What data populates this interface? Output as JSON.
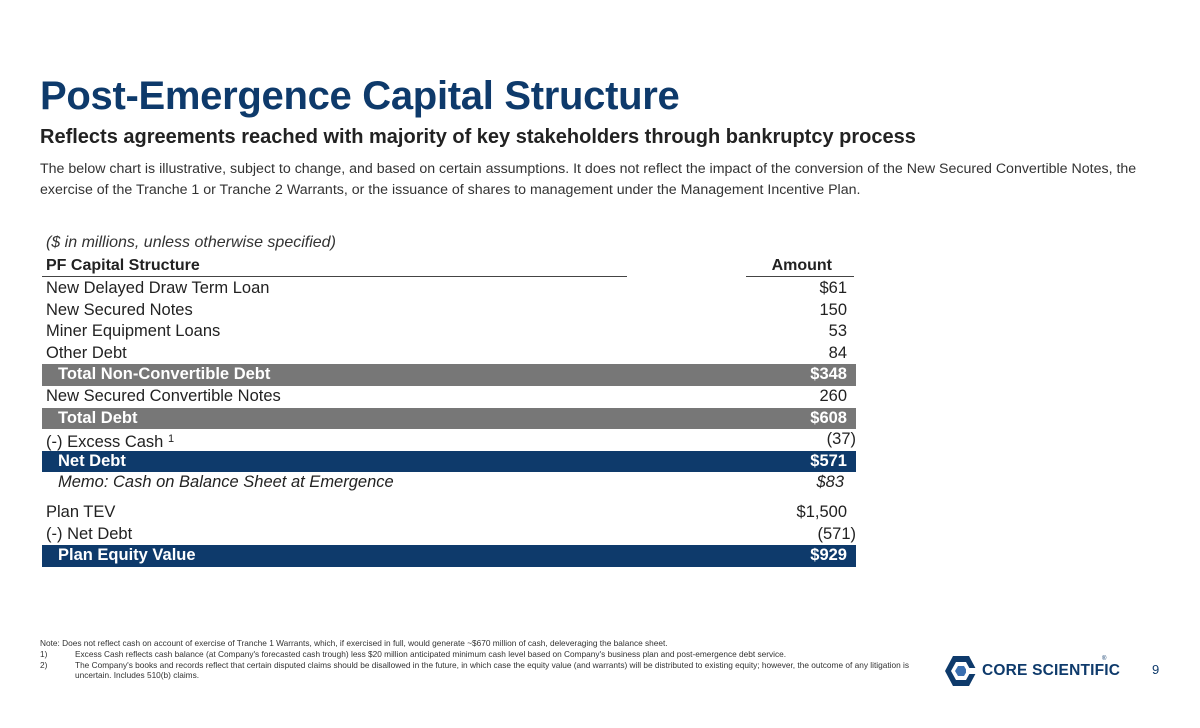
{
  "title": "Post-Emergence Capital Structure",
  "subtitle": "Reflects agreements reached with majority of key stakeholders through bankruptcy process",
  "description": "The below chart is illustrative, subject to change, and based on certain assumptions. It does not reflect the impact of the conversion of the New Secured Convertible Notes, the exercise of the Tranche 1 or Tranche 2 Warrants, or the issuance of shares to management under the Management Incentive Plan.",
  "units_note": "($ in millions, unless otherwise specified)",
  "table": {
    "header_label": "PF Capital Structure",
    "header_amount": "Amount",
    "rows": [
      {
        "label": "New Delayed Draw Term Loan",
        "amount": "$61"
      },
      {
        "label": "New Secured Notes",
        "amount": "150"
      },
      {
        "label": "Miner Equipment Loans",
        "amount": "53"
      },
      {
        "label": "Other Debt",
        "amount": "84"
      },
      {
        "label": "Total Non-Convertible Debt",
        "amount": "$348"
      },
      {
        "label": "New Secured Convertible Notes",
        "amount": "260"
      },
      {
        "label": "Total Debt",
        "amount": "$608"
      },
      {
        "label": "(-) Excess Cash",
        "footnote": "1",
        "amount": "(37)"
      },
      {
        "label": "Net Debt",
        "amount": "$571"
      },
      {
        "label": "Memo: Cash on Balance Sheet at Emergence",
        "amount": "$83"
      },
      {
        "label": "Plan TEV",
        "amount": "$1,500"
      },
      {
        "label": "(-) Net Debt",
        "amount": "(571)"
      },
      {
        "label": "Plan Equity Value",
        "amount": "$929"
      }
    ]
  },
  "notes": {
    "note": "Note: Does not reflect cash on account of exercise of Tranche 1 Warrants, which, if exercised in full, would generate ~$670 million of cash, deleveraging the balance sheet.",
    "items": [
      {
        "num": "1)",
        "text": "Excess Cash reflects cash balance (at Company's forecasted cash trough) less $20 million anticipated minimum cash level based on Company's business plan and post-emergence debt service."
      },
      {
        "num": "2)",
        "text": "The Company's books and records reflect that certain disputed claims should be disallowed in the future, in which case the equity value (and warrants) will be distributed to existing equity; however, the outcome of any litigation is uncertain. Includes 510(b) claims."
      }
    ]
  },
  "logo": {
    "text": "CORE SCIENTIFIC",
    "reg": "®",
    "icon": "hexagon-logo-icon",
    "color": "#0e3a6b"
  },
  "page_number": "9",
  "colors": {
    "brand_navy": "#0e3a6b",
    "total_gray": "#777777"
  }
}
